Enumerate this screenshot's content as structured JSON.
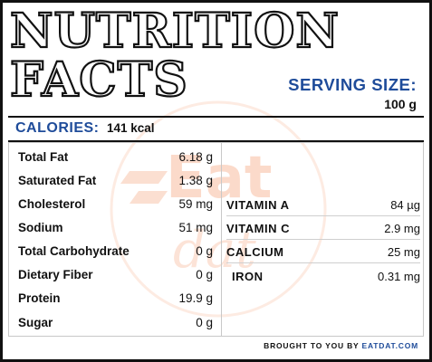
{
  "title": {
    "line1": "NUTRITION",
    "line2": "FACTS"
  },
  "serving": {
    "label": "SERVING SIZE:",
    "value": "100 g"
  },
  "calories": {
    "label": "CALORIES:",
    "value": "141 kcal"
  },
  "nutrients": [
    {
      "name": "Total Fat",
      "value": "6.18 g"
    },
    {
      "name": "Saturated Fat",
      "value": "1.38 g"
    },
    {
      "name": "Cholesterol",
      "value": "59 mg"
    },
    {
      "name": "Sodium",
      "value": "51 mg"
    },
    {
      "name": "Total Carbohydrate",
      "value": "0 g"
    },
    {
      "name": "Dietary Fiber",
      "value": "0 g"
    },
    {
      "name": "Protein",
      "value": "19.9 g"
    },
    {
      "name": "Sugar",
      "value": "0 g"
    }
  ],
  "vitamins": [
    {
      "name": "VITAMIN A",
      "value": "84 µg"
    },
    {
      "name": "VITAMIN C",
      "value": "2.9 mg"
    },
    {
      "name": "CALCIUM",
      "value": "25 mg"
    },
    {
      "name": "IRON",
      "value": "0.31 mg"
    }
  ],
  "footer": {
    "prefix": "BROUGHT TO YOU BY",
    "brand": "EATDAT.COM"
  },
  "watermark": {
    "top": "Eat",
    "bottom": "dat"
  },
  "colors": {
    "accent_blue": "#1f4c9a",
    "watermark_orange": "#f4a27a",
    "border": "#111111"
  }
}
